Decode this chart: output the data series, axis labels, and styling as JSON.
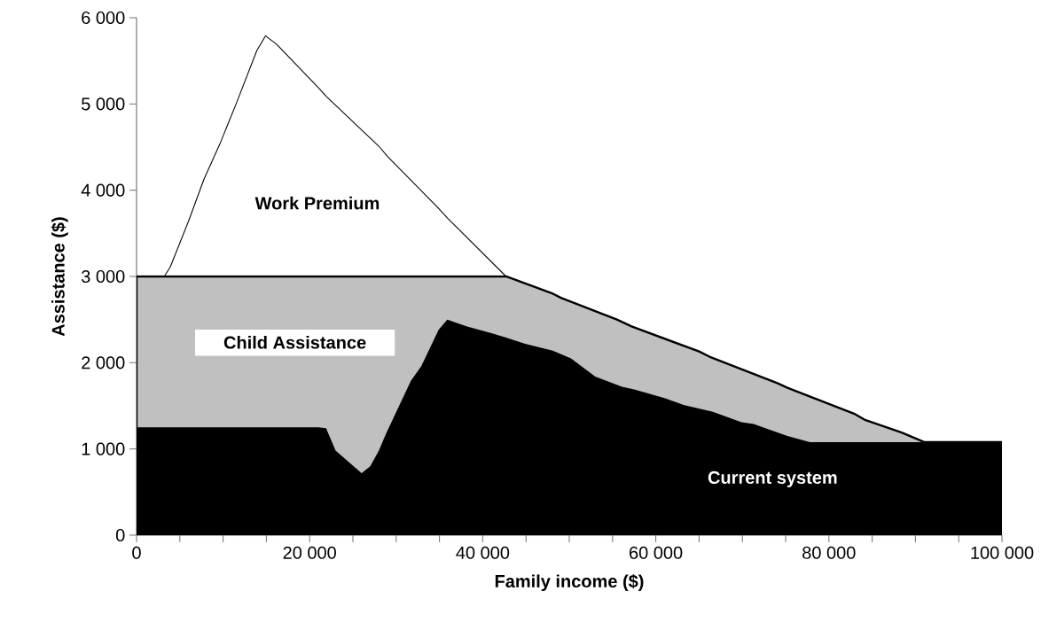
{
  "chart_data": {
    "type": "area",
    "xlabel": "Family income ($)",
    "ylabel": "Assistance ($)",
    "xlim": [
      0,
      100000
    ],
    "ylim": [
      0,
      6000
    ],
    "xticks": [
      {
        "value": 0,
        "label": "0"
      },
      {
        "value": 5000,
        "label": null
      },
      {
        "value": 10000,
        "label": null
      },
      {
        "value": 15000,
        "label": null
      },
      {
        "value": 20000,
        "label": "20 000"
      },
      {
        "value": 25000,
        "label": null
      },
      {
        "value": 30000,
        "label": null
      },
      {
        "value": 35000,
        "label": null
      },
      {
        "value": 40000,
        "label": "40 000"
      },
      {
        "value": 45000,
        "label": null
      },
      {
        "value": 50000,
        "label": null
      },
      {
        "value": 55000,
        "label": null
      },
      {
        "value": 60000,
        "label": "60 000"
      },
      {
        "value": 65000,
        "label": null
      },
      {
        "value": 70000,
        "label": null
      },
      {
        "value": 75000,
        "label": null
      },
      {
        "value": 80000,
        "label": "80 000"
      },
      {
        "value": 85000,
        "label": null
      },
      {
        "value": 90000,
        "label": null
      },
      {
        "value": 95000,
        "label": null
      },
      {
        "value": 100000,
        "label": "100 000"
      }
    ],
    "yticks": [
      {
        "value": 0,
        "label": "0"
      },
      {
        "value": 1000,
        "label": "1 000"
      },
      {
        "value": 2000,
        "label": "2 000"
      },
      {
        "value": 3000,
        "label": "3 000"
      },
      {
        "value": 4000,
        "label": "4 000"
      },
      {
        "value": 5000,
        "label": "5 000"
      },
      {
        "value": 6000,
        "label": "6 000"
      }
    ],
    "grid": false,
    "legend": false,
    "series": [
      {
        "name": "Work Premium",
        "color": "#ffffff",
        "x": [
          0,
          3200,
          3900,
          6000,
          7800,
          9600,
          11500,
          13900,
          14900,
          16200,
          21100,
          21900,
          28000,
          29000,
          34700,
          36000,
          42700
        ],
        "values": [
          3000,
          3000,
          3110,
          3640,
          4130,
          4530,
          5000,
          5620,
          5790,
          5690,
          5180,
          5090,
          4510,
          4390,
          3810,
          3670,
          3000
        ]
      },
      {
        "name": "Child Assistance",
        "color": "#c0c0c0",
        "x": [
          0,
          42700,
          48100,
          49100,
          55500,
          57200,
          65000,
          66200,
          74100,
          75200,
          82900,
          84100,
          88400,
          91000,
          92200,
          100000
        ],
        "values": [
          3000,
          3000,
          2800,
          2750,
          2500,
          2420,
          2130,
          2070,
          1760,
          1710,
          1410,
          1340,
          1190,
          1080,
          1080,
          1080
        ]
      },
      {
        "name": "Current system",
        "color": "#000000",
        "x": [
          0,
          21000,
          21900,
          23000,
          26000,
          27000,
          28000,
          28800,
          31700,
          32900,
          34900,
          35900,
          38200,
          41100,
          42700,
          44900,
          48100,
          50200,
          53000,
          56100,
          57500,
          61000,
          63200,
          66600,
          69900,
          71300,
          75200,
          77800,
          100000
        ],
        "values": [
          1250,
          1250,
          1240,
          980,
          720,
          800,
          980,
          1170,
          1790,
          1960,
          2380,
          2500,
          2420,
          2340,
          2290,
          2220,
          2140,
          2050,
          1840,
          1720,
          1690,
          1590,
          1510,
          1430,
          1310,
          1290,
          1150,
          1080,
          1080
        ]
      }
    ]
  }
}
